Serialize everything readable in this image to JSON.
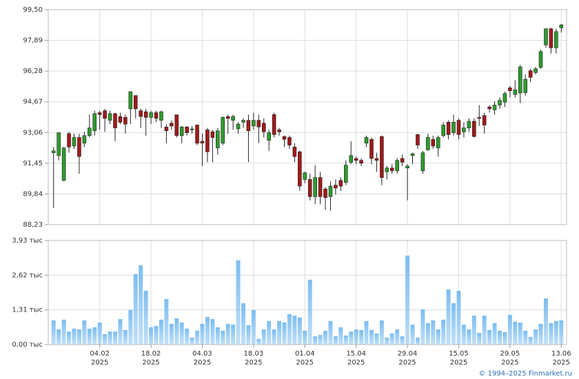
{
  "chart_data": [
    {
      "type": "candlestick",
      "up_color": "#2e9b2e",
      "down_color": "#a11a1a",
      "grid": true,
      "ylim": [
        88.23,
        99.5
      ],
      "yticks": [
        {
          "value": 88.23,
          "label": "88,23"
        },
        {
          "value": 89.84,
          "label": "89,84"
        },
        {
          "value": 91.45,
          "label": "91,45"
        },
        {
          "value": 93.06,
          "label": "93,06"
        },
        {
          "value": 94.67,
          "label": "94,67"
        },
        {
          "value": 96.28,
          "label": "96,28"
        },
        {
          "value": 97.89,
          "label": "97,89"
        },
        {
          "value": 99.5,
          "label": "99,50"
        }
      ],
      "open": [
        92.0,
        91.85,
        90.55,
        93.0,
        92.35,
        92.8,
        92.5,
        92.9,
        93.15,
        94.1,
        94.2,
        93.7,
        94.05,
        93.9,
        93.85,
        94.3,
        95.0,
        94.2,
        94.15,
        93.85,
        94.1,
        93.7,
        93.35,
        93.55,
        93.99,
        92.9,
        93.35,
        93.2,
        93.45,
        92.6,
        93.2,
        93.1,
        92.25,
        92.5,
        93.9,
        93.7,
        93.25,
        93.6,
        93.7,
        93.4,
        93.7,
        93.55,
        92.65,
        94.0,
        93.2,
        92.85,
        92.8,
        92.3,
        92.05,
        90.6,
        90.6,
        89.7,
        90.7,
        90.1,
        89.7,
        90.3,
        90.55,
        90.45,
        91.5,
        91.7,
        91.6,
        92.5,
        92.7,
        91.7,
        92.85,
        91.0,
        91.2,
        91.05,
        91.7,
        91.2,
        91.85,
        92.95,
        91.05,
        92.15,
        92.7,
        92.25,
        92.9,
        93.6,
        93.05,
        93.7,
        93.1,
        93.3,
        93.65,
        93.85,
        93.95,
        94.4,
        94.25,
        94.5,
        94.65,
        95.4,
        95.05,
        95.13,
        95.15,
        96.3,
        96.2,
        96.47,
        97.65,
        98.5,
        97.5,
        98.55
      ],
      "high": [
        92.3,
        93.05,
        92.3,
        93.1,
        93.0,
        93.0,
        93.1,
        94.0,
        94.2,
        94.2,
        94.3,
        94.2,
        94.1,
        94.1,
        94.0,
        95.2,
        95.0,
        94.3,
        94.3,
        94.2,
        94.2,
        94.2,
        93.5,
        93.7,
        94.0,
        93.4,
        93.4,
        93.4,
        93.5,
        93.0,
        93.3,
        93.2,
        93.3,
        93.9,
        94.0,
        94.0,
        93.6,
        93.8,
        94.0,
        94.1,
        94.0,
        93.8,
        93.2,
        94.1,
        93.3,
        92.9,
        92.9,
        92.5,
        92.1,
        91.0,
        90.9,
        91.35,
        91.0,
        90.2,
        90.5,
        90.6,
        90.7,
        91.6,
        92.6,
        91.8,
        91.7,
        92.9,
        92.8,
        92.0,
        92.9,
        91.3,
        91.4,
        91.7,
        91.9,
        91.4,
        92.0,
        93.0,
        92.1,
        93.0,
        92.9,
        92.9,
        93.6,
        93.7,
        94.0,
        93.8,
        93.6,
        93.8,
        93.8,
        94.5,
        94.1,
        94.5,
        94.7,
        94.9,
        95.2,
        95.5,
        95.8,
        96.6,
        96.1,
        96.4,
        96.5,
        97.4,
        98.5,
        98.55,
        98.5,
        98.75
      ],
      "low": [
        89.1,
        91.6,
        90.5,
        92.0,
        92.2,
        90.9,
        92.3,
        92.8,
        92.9,
        93.2,
        93.1,
        93.5,
        92.6,
        93.5,
        93.0,
        93.5,
        93.8,
        93.3,
        92.9,
        93.5,
        93.6,
        93.3,
        92.5,
        93.2,
        92.8,
        92.5,
        92.9,
        93.0,
        92.4,
        91.3,
        91.5,
        91.5,
        91.9,
        92.4,
        93.0,
        93.2,
        93.0,
        93.3,
        91.5,
        93.2,
        92.5,
        92.8,
        92.1,
        92.8,
        92.9,
        92.3,
        92.2,
        91.5,
        90.0,
        90.4,
        89.5,
        89.3,
        89.3,
        89.0,
        88.95,
        89.8,
        90.0,
        90.3,
        91.4,
        91.4,
        91.3,
        92.3,
        91.4,
        91.0,
        90.3,
        90.6,
        90.9,
        90.9,
        91.3,
        89.5,
        91.4,
        92.2,
        90.9,
        92.1,
        92.2,
        91.8,
        92.8,
        92.7,
        92.9,
        92.7,
        92.8,
        93.1,
        92.8,
        93.4,
        93.0,
        94.1,
        94.0,
        94.3,
        94.4,
        94.9,
        94.9,
        94.6,
        95.0,
        95.7,
        96.1,
        96.4,
        97.5,
        97.2,
        97.2,
        98.3
      ],
      "close": [
        92.1,
        93.05,
        92.25,
        92.3,
        92.8,
        91.8,
        92.9,
        93.3,
        94.05,
        94.0,
        93.8,
        94.05,
        93.3,
        93.6,
        93.5,
        95.2,
        94.3,
        93.9,
        93.85,
        94.1,
        93.8,
        94.15,
        93.15,
        93.4,
        92.9,
        93.35,
        93.05,
        93.25,
        92.5,
        92.5,
        92.05,
        92.8,
        93.15,
        93.85,
        93.8,
        93.9,
        93.5,
        93.7,
        93.15,
        93.7,
        93.35,
        93.1,
        93.05,
        92.95,
        93.1,
        92.7,
        92.4,
        91.8,
        90.25,
        90.95,
        89.7,
        90.7,
        89.7,
        89.65,
        90.25,
        90.15,
        90.25,
        91.35,
        91.85,
        91.6,
        91.45,
        92.8,
        91.7,
        91.6,
        90.7,
        91.2,
        91.05,
        91.6,
        91.5,
        91.3,
        91.95,
        92.4,
        92.0,
        92.8,
        92.35,
        92.8,
        93.45,
        92.95,
        93.6,
        92.95,
        93.3,
        93.65,
        92.85,
        93.8,
        93.45,
        94.3,
        94.5,
        94.75,
        95.1,
        95.25,
        95.3,
        96.5,
        95.85,
        95.95,
        96.4,
        97.3,
        98.5,
        97.5,
        98.35,
        98.7
      ]
    },
    {
      "type": "bar",
      "color": "#7cbdf0",
      "grid": true,
      "ylim": [
        0,
        3.93
      ],
      "yticks": [
        {
          "value": 0,
          "label": "0,00 тыс"
        },
        {
          "value": 1.31,
          "label": "1,31 тыс"
        },
        {
          "value": 2.62,
          "label": "2,62 тыс"
        },
        {
          "value": 3.93,
          "label": "3,93 тыс"
        }
      ],
      "categories": [
        null,
        null,
        null,
        null,
        null,
        null,
        null,
        null,
        null,
        "04.02 2025",
        null,
        null,
        null,
        null,
        null,
        null,
        null,
        null,
        null,
        "18.02 2025",
        null,
        null,
        null,
        null,
        null,
        null,
        null,
        null,
        null,
        "04.03 2025",
        null,
        null,
        null,
        null,
        null,
        null,
        null,
        null,
        null,
        "18.03 2025",
        null,
        null,
        null,
        null,
        null,
        null,
        null,
        null,
        null,
        "01.04 2025",
        null,
        null,
        null,
        null,
        null,
        null,
        null,
        null,
        null,
        "15.04 2025",
        null,
        null,
        null,
        null,
        null,
        null,
        null,
        null,
        null,
        "29.04 2025",
        null,
        null,
        null,
        null,
        null,
        null,
        null,
        null,
        null,
        "15.05 2025",
        null,
        null,
        null,
        null,
        null,
        null,
        null,
        null,
        null,
        "29.05 2025",
        null,
        null,
        null,
        null,
        null,
        null,
        null,
        null,
        null,
        "13.06 2025"
      ],
      "values": [
        0.91,
        0.57,
        0.94,
        0.49,
        0.6,
        0.57,
        0.91,
        0.6,
        0.65,
        0.83,
        0.39,
        0.49,
        0.49,
        0.96,
        0.55,
        1.3,
        2.66,
        2.99,
        2.03,
        0.65,
        0.7,
        0.94,
        1.72,
        0.78,
        0.99,
        0.83,
        0.6,
        0.26,
        0.52,
        0.78,
        1.04,
        0.96,
        0.65,
        0.52,
        0.78,
        0.75,
        3.18,
        1.56,
        0.73,
        1.3,
        0.21,
        0.57,
        0.89,
        0.57,
        0.89,
        0.83,
        1.15,
        1.09,
        1.02,
        0.52,
        2.45,
        0.31,
        0.36,
        0.52,
        0.89,
        0.31,
        0.65,
        0.34,
        0.49,
        0.57,
        0.55,
        0.89,
        0.55,
        0.42,
        0.91,
        0.26,
        0.42,
        0.57,
        0.31,
        3.36,
        0.75,
        0.26,
        1.33,
        0.81,
        0.91,
        0.57,
        0.94,
        2.08,
        1.56,
        2.03,
        0.75,
        0.57,
        1.09,
        0.44,
        1.09,
        0.55,
        0.81,
        0.52,
        0.47,
        1.12,
        0.86,
        0.83,
        0.52,
        0.29,
        0.57,
        0.78,
        1.74,
        0.81,
        0.89,
        0.91
      ]
    }
  ],
  "footer": "© 1994–2025 Finmarket.ru"
}
